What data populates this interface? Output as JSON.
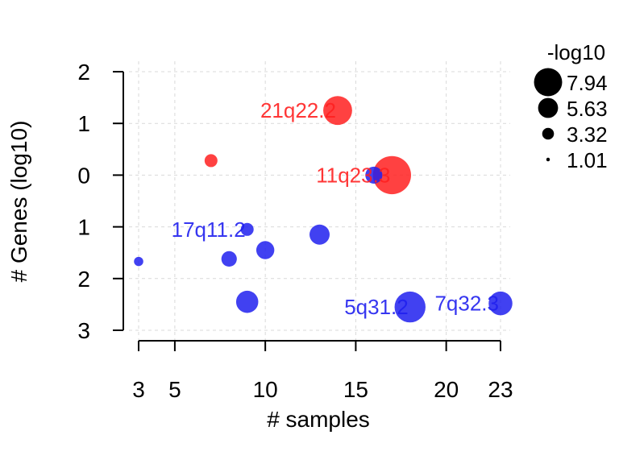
{
  "chart_data": {
    "type": "scatter",
    "xlabel": "# samples",
    "ylabel": "# Genes (log10)",
    "x_ticks": [
      3,
      5,
      10,
      15,
      20,
      23
    ],
    "y_ticks": [
      {
        "value": 2,
        "label": "2"
      },
      {
        "value": 1,
        "label": "1"
      },
      {
        "value": 0,
        "label": "0"
      },
      {
        "value": -1,
        "label": "1"
      },
      {
        "value": -2,
        "label": "2"
      },
      {
        "value": -3,
        "label": "3"
      }
    ],
    "xlim": [
      3,
      23
    ],
    "ylim": [
      -3,
      2
    ],
    "grid": true,
    "legend": {
      "title": "-log10",
      "placement": "top-right",
      "entries": [
        {
          "label": "7.94",
          "size": 7.94
        },
        {
          "label": "5.63",
          "size": 5.63
        },
        {
          "label": "3.32",
          "size": 3.32
        },
        {
          "label": "1.01",
          "size": 1.01
        }
      ]
    },
    "colors": {
      "amplification": "#ff2020",
      "deletion": "#2020ee"
    },
    "points": [
      {
        "x": 14,
        "y": 1.25,
        "size": 5.6,
        "color": "amplification",
        "label": "21q22.2"
      },
      {
        "x": 7,
        "y": 0.28,
        "size": 2.5,
        "color": "amplification",
        "label": ""
      },
      {
        "x": 17,
        "y": 0.0,
        "size": 7.4,
        "color": "amplification",
        "label": "11q23.3"
      },
      {
        "x": 16,
        "y": 0.0,
        "size": 3.3,
        "color": "deletion",
        "label": ""
      },
      {
        "x": 9,
        "y": -1.05,
        "size": 2.5,
        "color": "deletion",
        "label": "17q11.2"
      },
      {
        "x": 13,
        "y": -1.15,
        "size": 3.9,
        "color": "deletion",
        "label": ""
      },
      {
        "x": 10,
        "y": -1.45,
        "size": 3.5,
        "color": "deletion",
        "label": ""
      },
      {
        "x": 8,
        "y": -1.62,
        "size": 3.0,
        "color": "deletion",
        "label": ""
      },
      {
        "x": 3,
        "y": -1.67,
        "size": 1.8,
        "color": "deletion",
        "label": ""
      },
      {
        "x": 9,
        "y": -2.45,
        "size": 4.3,
        "color": "deletion",
        "label": ""
      },
      {
        "x": 18,
        "y": -2.55,
        "size": 6.0,
        "color": "deletion",
        "label": "5q31.2"
      },
      {
        "x": 23,
        "y": -2.48,
        "size": 4.6,
        "color": "deletion",
        "label": "7q32.3"
      }
    ]
  }
}
